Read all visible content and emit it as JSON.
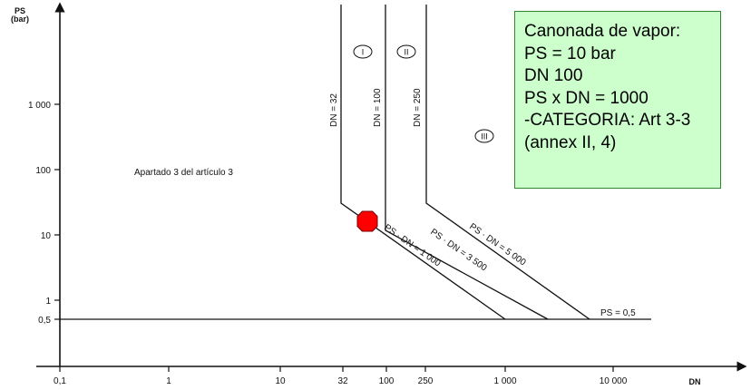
{
  "axes": {
    "y_title_line1": "PS",
    "y_title_line2": "(bar)",
    "x_title": "DN",
    "y_ticks": [
      "1 000",
      "100",
      "10",
      "1",
      "0,5"
    ],
    "x_ticks": [
      "0,1",
      "1",
      "10",
      "32",
      "100",
      "250",
      "1 000",
      "10 000"
    ]
  },
  "regions": {
    "area_label": "Apartado 3 del artículo 3",
    "zone_1": "I",
    "zone_2": "II",
    "zone_3": "III"
  },
  "curves": {
    "dn32": "DN = 32",
    "dn100": "DN = 100",
    "dn250": "DN = 250",
    "ps_dn_1000": "PS · DN = 1 000",
    "ps_dn_3500": "PS · DN = 3 500",
    "ps_dn_5000": "PS · DN = 5 000",
    "ps_05": "PS = 0,5"
  },
  "marker": {
    "color": "#ff0000",
    "ps": 10,
    "dn": 100
  },
  "note": {
    "lines": [
      "Canonada de vapor:",
      "PS = 10 bar",
      "DN 100",
      "PS x DN = 1000",
      "-CATEGORIA: Art 3-3",
      "(annex II, 4)"
    ],
    "background": "#ccffcc",
    "border": "#2f8a2f"
  }
}
